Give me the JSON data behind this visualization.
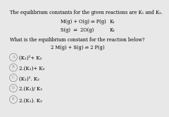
{
  "bg_color": "#e8e8e8",
  "title_line": "The equilibrium constants for the given reactions are K₁ and K₂.",
  "reaction1_left": "M(g) + O(g) ⇌ P(g)",
  "reaction1_right": "K₁",
  "reaction2_left": "S(g)  ⇌  2O(g)",
  "reaction2_right": "K₂",
  "question": "What is the equilibrium constant for the reaction below?",
  "target_reaction": "2 M(g) + S(g) ⇌ 2 P(g)",
  "options": [
    "(K₁)²+ K₂",
    "2.(K₁)+ K₂",
    "(K₁)². K₂",
    "2.(K₁)/ K₂",
    "2.(K₁). K₂"
  ],
  "option_labels": [
    "A",
    "B",
    "C",
    "D",
    "E"
  ],
  "font_size_title": 4.8,
  "font_size_body": 4.8,
  "font_size_options": 5.0
}
